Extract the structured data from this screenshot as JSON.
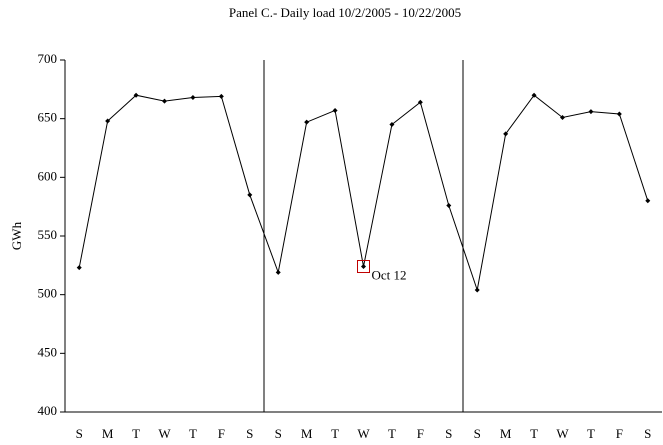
{
  "chart_data": {
    "type": "line",
    "title": "Panel C.- Daily load 10/2/2005 - 10/22/2005",
    "ylabel": "GWh",
    "categories": [
      "S",
      "M",
      "T",
      "W",
      "T",
      "F",
      "S",
      "S",
      "M",
      "T",
      "W",
      "T",
      "F",
      "S",
      "S",
      "M",
      "T",
      "W",
      "T",
      "F",
      "S"
    ],
    "series": [
      {
        "name": "Daily load",
        "color": "#000000",
        "values": [
          523,
          648,
          670,
          665,
          668,
          669,
          585,
          519,
          647,
          657,
          524,
          645,
          664,
          576,
          504,
          637,
          670,
          651,
          656,
          654,
          580
        ]
      }
    ],
    "annotation": "Oct 12",
    "ylim": [
      400,
      700
    ],
    "yticks": [
      400,
      450,
      500,
      550,
      600,
      650,
      700
    ],
    "grid": false
  }
}
